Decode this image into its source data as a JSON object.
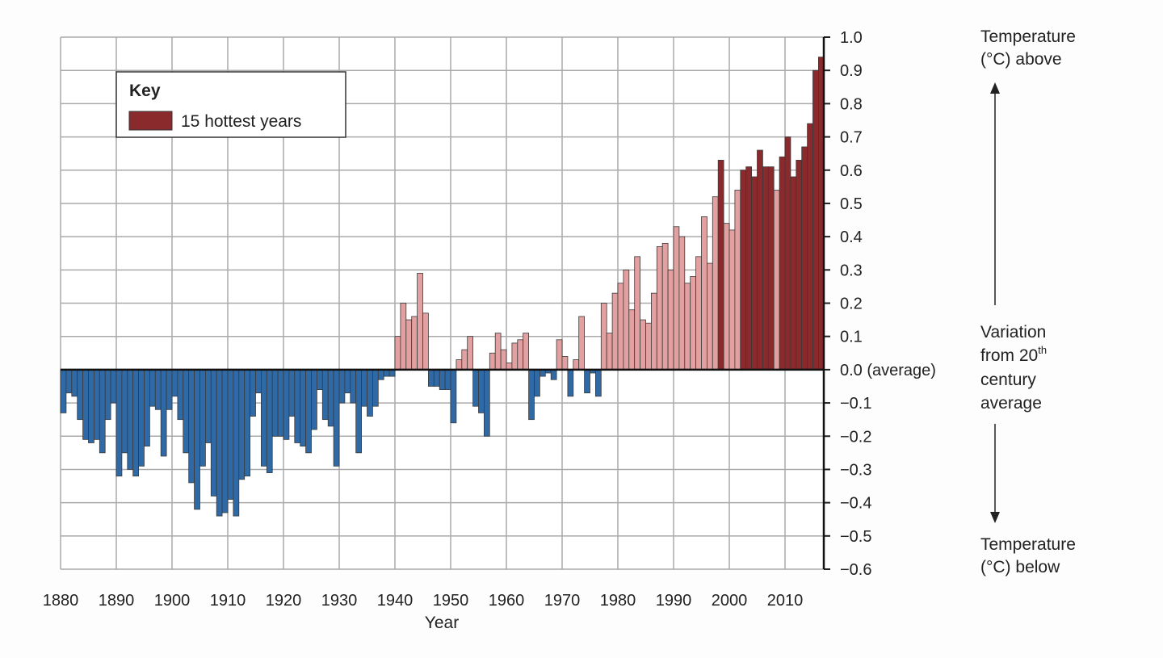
{
  "chart_data": {
    "type": "bar",
    "xlabel": "Year",
    "ylabel": "",
    "x_start": 1880,
    "x_end": 2016,
    "ylim": [
      -0.6,
      1.0
    ],
    "grid": true,
    "legend_position": "top-left",
    "x_tick_labels": [
      "1880",
      "1890",
      "1900",
      "1910",
      "1920",
      "1930",
      "1940",
      "1950",
      "1960",
      "1970",
      "1980",
      "1990",
      "2000",
      "2010"
    ],
    "y_tick_labels": [
      "1.0",
      "0.9",
      "0.8",
      "0.7",
      "0.6",
      "0.5",
      "0.4",
      "0.3",
      "0.2",
      "0.1",
      "0.0 (average)",
      "−0.1",
      "−0.2",
      "−0.3",
      "−0.4",
      "−0.5",
      "−0.6"
    ],
    "y_ticks": [
      1.0,
      0.9,
      0.8,
      0.7,
      0.6,
      0.5,
      0.4,
      0.3,
      0.2,
      0.1,
      0.0,
      -0.1,
      -0.2,
      -0.3,
      -0.4,
      -0.5,
      -0.6
    ],
    "values": [
      -0.13,
      -0.07,
      -0.08,
      -0.15,
      -0.21,
      -0.22,
      -0.21,
      -0.25,
      -0.15,
      -0.1,
      -0.32,
      -0.25,
      -0.3,
      -0.32,
      -0.29,
      -0.23,
      -0.11,
      -0.12,
      -0.26,
      -0.12,
      -0.08,
      -0.15,
      -0.25,
      -0.34,
      -0.42,
      -0.29,
      -0.22,
      -0.38,
      -0.44,
      -0.43,
      -0.39,
      -0.44,
      -0.33,
      -0.32,
      -0.14,
      -0.07,
      -0.29,
      -0.31,
      -0.2,
      -0.2,
      -0.21,
      -0.14,
      -0.22,
      -0.23,
      -0.25,
      -0.18,
      -0.06,
      -0.15,
      -0.17,
      -0.29,
      -0.1,
      -0.07,
      -0.1,
      -0.25,
      -0.11,
      -0.14,
      -0.11,
      -0.03,
      -0.02,
      -0.02,
      0.1,
      0.2,
      0.15,
      0.16,
      0.29,
      0.17,
      -0.05,
      -0.05,
      -0.06,
      -0.06,
      -0.16,
      0.03,
      0.06,
      0.1,
      -0.11,
      -0.13,
      -0.2,
      0.05,
      0.11,
      0.06,
      0.02,
      0.08,
      0.09,
      0.11,
      -0.15,
      -0.08,
      -0.02,
      -0.01,
      -0.03,
      0.09,
      0.04,
      -0.08,
      0.03,
      0.16,
      -0.07,
      -0.01,
      -0.08,
      0.2,
      0.11,
      0.23,
      0.26,
      0.3,
      0.18,
      0.34,
      0.15,
      0.14,
      0.23,
      0.37,
      0.38,
      0.3,
      0.43,
      0.4,
      0.26,
      0.28,
      0.34,
      0.46,
      0.32,
      0.52,
      0.63,
      0.44,
      0.42,
      0.54,
      0.6,
      0.61,
      0.58,
      0.66,
      0.61,
      0.61,
      0.54,
      0.64,
      0.7,
      0.58,
      0.63,
      0.67,
      0.74,
      0.9,
      0.94
    ],
    "hottest_years": [
      1998,
      2002,
      2003,
      2004,
      2005,
      2006,
      2007,
      2009,
      2010,
      2011,
      2012,
      2013,
      2014,
      2015,
      2016
    ],
    "legend": {
      "title": "Key",
      "entries": [
        "15 hottest years"
      ]
    },
    "annotations": {
      "above": [
        "Temperature",
        "(°C) above"
      ],
      "middle": [
        "Variation",
        "from 20",
        "th",
        "century",
        "average"
      ],
      "below": [
        "Temperature",
        "(°C) below"
      ]
    },
    "colors": {
      "negative": "#2f6aa6",
      "positive": "#e3a0a0",
      "hottest": "#8a2a2c",
      "outline": "#333333"
    }
  }
}
